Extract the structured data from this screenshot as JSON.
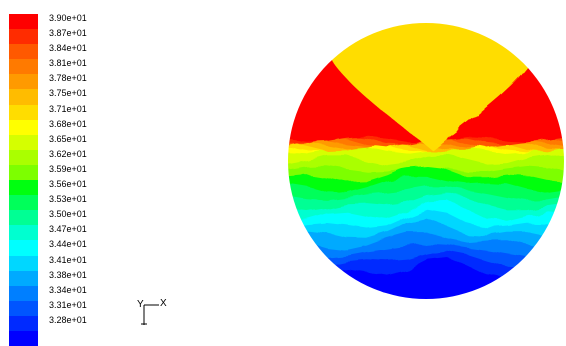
{
  "legend": {
    "colors": [
      "#fe0000",
      "#ff2c00",
      "#ff5900",
      "#ff7a00",
      "#ff9a00",
      "#ffbc00",
      "#ffdd00",
      "#ffff00",
      "#d5ff00",
      "#aaff00",
      "#7dff00",
      "#00ff10",
      "#00ff5a",
      "#00ff94",
      "#00ffd0",
      "#00ffff",
      "#00d7ff",
      "#00aaff",
      "#007fff",
      "#0055ff",
      "#002aff",
      "#0000ff"
    ],
    "labels": [
      "3.90e+01",
      "3.87e+01",
      "3.84e+01",
      "3.81e+01",
      "3.78e+01",
      "3.75e+01",
      "3.71e+01",
      "3.68e+01",
      "3.65e+01",
      "3.62e+01",
      "3.59e+01",
      "3.56e+01",
      "3.53e+01",
      "3.50e+01",
      "3.47e+01",
      "3.44e+01",
      "3.41e+01",
      "3.38e+01",
      "3.34e+01",
      "3.31e+01",
      "3.28e+01"
    ]
  },
  "axis": {
    "y_label": "Y",
    "x_label": "X"
  },
  "contour": {
    "shape": "circle",
    "max_value": 39.0,
    "min_value": 32.8,
    "max_region": "top",
    "min_region": "bottom"
  }
}
